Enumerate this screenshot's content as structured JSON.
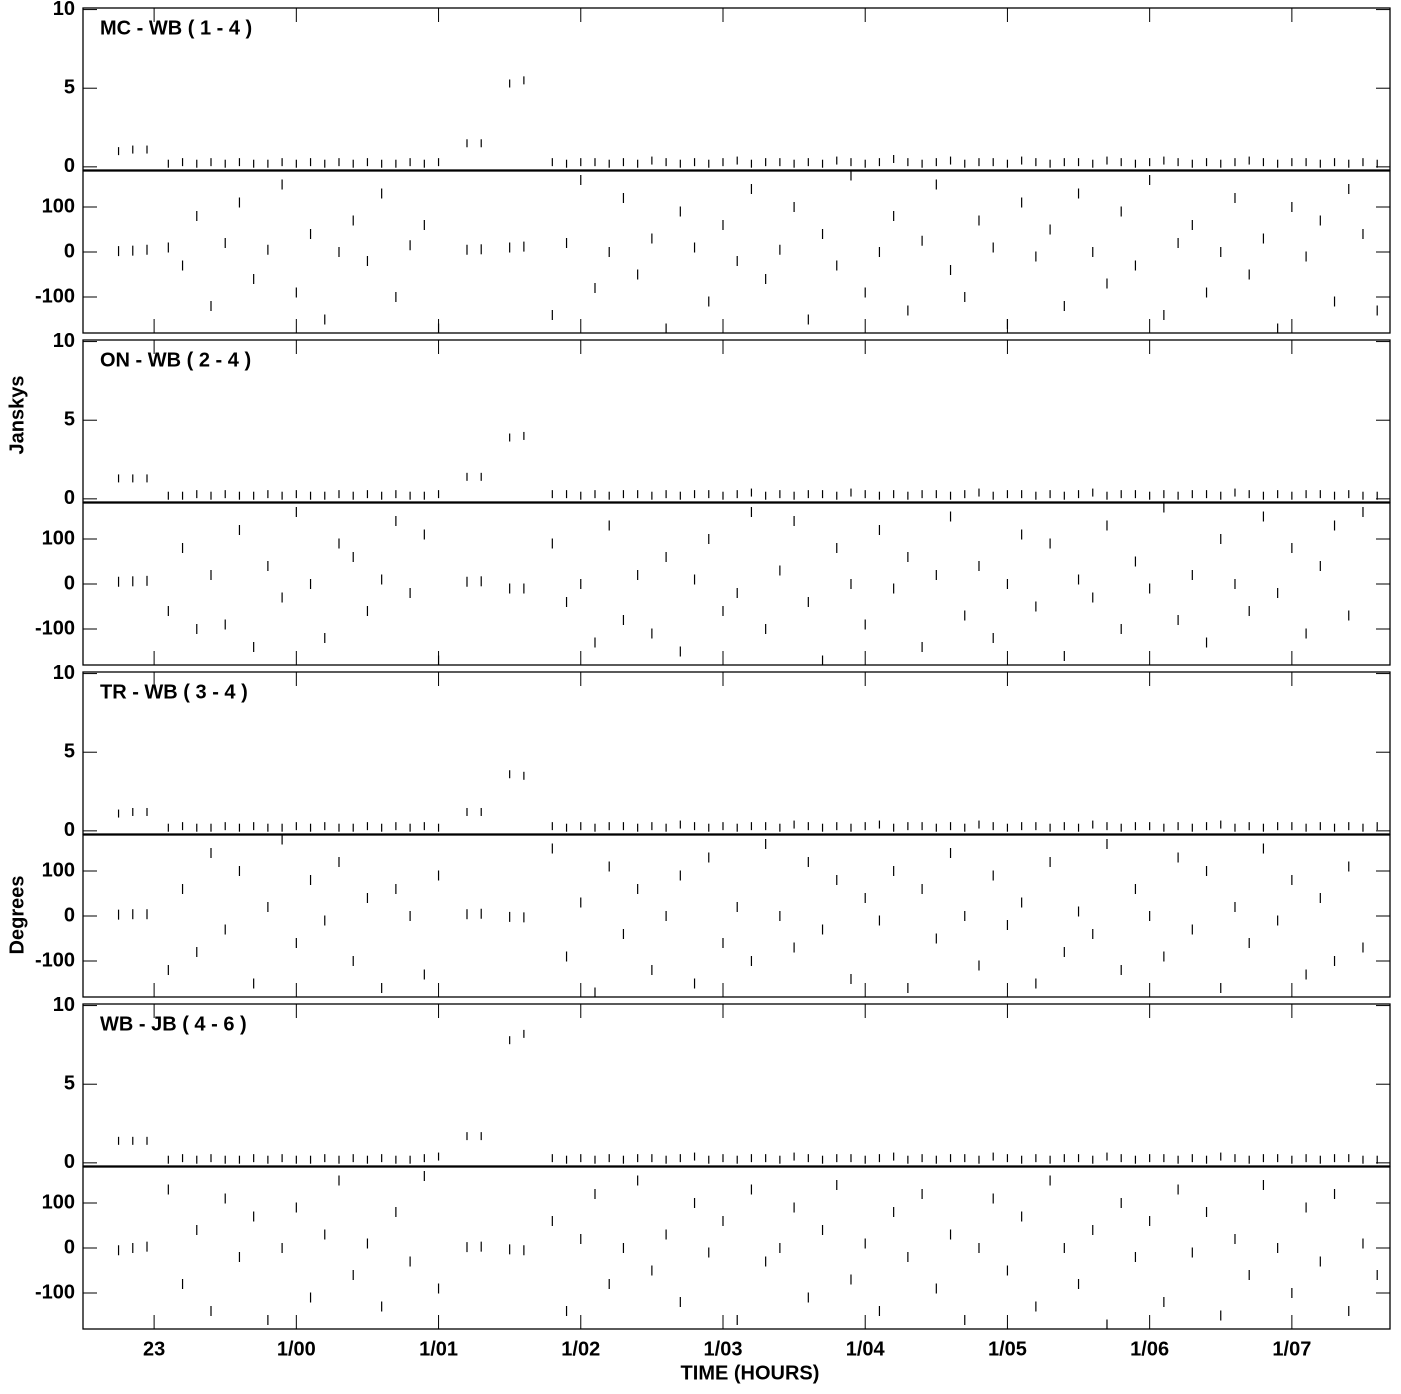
{
  "chart_data": {
    "type": "scatter",
    "x_label": "TIME (HOURS)",
    "amp_label": "Janskys",
    "phase_label": "Degrees",
    "color": "#000000",
    "xlim": [
      22.5,
      31.69
    ],
    "xticks": [
      {
        "value": 23,
        "label": "23"
      },
      {
        "value": 24,
        "label": "1/00"
      },
      {
        "value": 25,
        "label": "1/01"
      },
      {
        "value": 26,
        "label": "1/02"
      },
      {
        "value": 27,
        "label": "1/03"
      },
      {
        "value": 28,
        "label": "1/04"
      },
      {
        "value": 29,
        "label": "1/05"
      },
      {
        "value": 30,
        "label": "1/06"
      },
      {
        "value": 31,
        "label": "1/07"
      }
    ],
    "amp_ylim": [
      -0.2,
      10.1
    ],
    "amp_yticks": [
      0,
      5,
      10
    ],
    "phase_ylim": [
      -180,
      180
    ],
    "phase_yticks": [
      -100,
      0,
      100
    ],
    "x": [
      22.75,
      22.85,
      22.95,
      23.1,
      23.2,
      23.3,
      23.4,
      23.5,
      23.6,
      23.7,
      23.8,
      23.9,
      24.0,
      24.1,
      24.2,
      24.3,
      24.4,
      24.5,
      24.6,
      24.7,
      24.8,
      24.9,
      25.0,
      25.2,
      25.3,
      25.5,
      25.6,
      25.8,
      25.9,
      26.0,
      26.1,
      26.2,
      26.3,
      26.4,
      26.5,
      26.6,
      26.7,
      26.8,
      26.9,
      27.0,
      27.1,
      27.2,
      27.3,
      27.4,
      27.5,
      27.6,
      27.7,
      27.8,
      27.9,
      28.0,
      28.1,
      28.2,
      28.3,
      28.4,
      28.5,
      28.6,
      28.7,
      28.8,
      28.9,
      29.0,
      29.1,
      29.2,
      29.3,
      29.4,
      29.5,
      29.6,
      29.7,
      29.8,
      29.9,
      30.0,
      30.1,
      30.2,
      30.3,
      30.4,
      30.5,
      30.6,
      30.7,
      30.8,
      30.9,
      31.0,
      31.1,
      31.2,
      31.3,
      31.4,
      31.5,
      31.6
    ],
    "panels": [
      {
        "title": "MC - WB ( 1 - 4 )",
        "amplitude": [
          1.0,
          1.1,
          1.1,
          0.2,
          0.3,
          0.2,
          0.3,
          0.2,
          0.3,
          0.2,
          0.2,
          0.3,
          0.2,
          0.3,
          0.2,
          0.3,
          0.2,
          0.3,
          0.2,
          0.2,
          0.3,
          0.2,
          0.3,
          1.5,
          1.5,
          5.3,
          5.5,
          0.3,
          0.2,
          0.3,
          0.3,
          0.2,
          0.3,
          0.2,
          0.4,
          0.3,
          0.2,
          0.3,
          0.2,
          0.3,
          0.4,
          0.2,
          0.3,
          0.3,
          0.2,
          0.3,
          0.2,
          0.4,
          0.3,
          0.2,
          0.3,
          0.5,
          0.3,
          0.2,
          0.3,
          0.4,
          0.2,
          0.3,
          0.3,
          0.2,
          0.4,
          0.3,
          0.2,
          0.3,
          0.3,
          0.2,
          0.4,
          0.3,
          0.2,
          0.3,
          0.4,
          0.3,
          0.2,
          0.3,
          0.2,
          0.3,
          0.4,
          0.3,
          0.2,
          0.3,
          0.3,
          0.2,
          0.3,
          0.2,
          0.3,
          0.2
        ],
        "phase": [
          2,
          3,
          5,
          10,
          -30,
          80,
          -120,
          20,
          110,
          -60,
          5,
          150,
          -90,
          40,
          -150,
          0,
          70,
          -20,
          130,
          -100,
          15,
          60,
          -170,
          5,
          6,
          10,
          12,
          -140,
          20,
          160,
          -80,
          0,
          120,
          -50,
          30,
          -170,
          90,
          10,
          -110,
          60,
          -20,
          140,
          -60,
          5,
          100,
          -150,
          40,
          -30,
          170,
          -90,
          0,
          80,
          -130,
          25,
          150,
          -40,
          -100,
          70,
          10,
          -160,
          110,
          -10,
          50,
          -120,
          130,
          0,
          -70,
          90,
          -30,
          160,
          -140,
          20,
          60,
          -90,
          0,
          120,
          -50,
          30,
          -170,
          100,
          -10,
          70,
          -110,
          140,
          40,
          -130
        ]
      },
      {
        "title": "ON - WB ( 2 - 4 )",
        "amplitude": [
          1.3,
          1.3,
          1.3,
          0.2,
          0.2,
          0.3,
          0.2,
          0.3,
          0.2,
          0.2,
          0.3,
          0.2,
          0.3,
          0.2,
          0.2,
          0.3,
          0.2,
          0.3,
          0.2,
          0.3,
          0.2,
          0.2,
          0.3,
          1.4,
          1.4,
          3.9,
          4.0,
          0.3,
          0.3,
          0.2,
          0.3,
          0.2,
          0.3,
          0.3,
          0.2,
          0.3,
          0.2,
          0.3,
          0.3,
          0.2,
          0.3,
          0.4,
          0.2,
          0.3,
          0.2,
          0.3,
          0.3,
          0.2,
          0.4,
          0.3,
          0.2,
          0.3,
          0.2,
          0.3,
          0.3,
          0.2,
          0.3,
          0.4,
          0.2,
          0.3,
          0.3,
          0.2,
          0.3,
          0.2,
          0.3,
          0.4,
          0.2,
          0.3,
          0.3,
          0.2,
          0.3,
          0.2,
          0.3,
          0.3,
          0.2,
          0.4,
          0.3,
          0.2,
          0.3,
          0.2,
          0.3,
          0.3,
          0.2,
          0.3,
          0.2,
          0.2
        ],
        "phase": [
          5,
          6,
          7,
          -60,
          80,
          -100,
          20,
          -90,
          120,
          -140,
          40,
          -30,
          160,
          0,
          -120,
          90,
          60,
          -60,
          10,
          140,
          -20,
          110,
          -170,
          5,
          6,
          -10,
          -10,
          90,
          -40,
          0,
          -130,
          130,
          -80,
          20,
          -110,
          60,
          -150,
          10,
          100,
          -60,
          -20,
          160,
          -100,
          30,
          140,
          -40,
          -170,
          80,
          0,
          -90,
          120,
          -10,
          60,
          -140,
          20,
          150,
          -70,
          40,
          -120,
          0,
          110,
          -50,
          90,
          -160,
          10,
          -30,
          130,
          -100,
          50,
          -10,
          170,
          -80,
          20,
          -130,
          100,
          0,
          -60,
          150,
          -20,
          80,
          -110,
          40,
          130,
          -70,
          160
        ]
      },
      {
        "title": "TR - WB ( 3 - 4 )",
        "amplitude": [
          1.1,
          1.2,
          1.2,
          0.2,
          0.3,
          0.2,
          0.2,
          0.3,
          0.2,
          0.3,
          0.2,
          0.2,
          0.3,
          0.2,
          0.3,
          0.2,
          0.2,
          0.3,
          0.2,
          0.3,
          0.2,
          0.3,
          0.2,
          1.2,
          1.2,
          3.6,
          3.5,
          0.3,
          0.2,
          0.3,
          0.2,
          0.3,
          0.3,
          0.2,
          0.3,
          0.2,
          0.4,
          0.3,
          0.2,
          0.3,
          0.2,
          0.3,
          0.3,
          0.2,
          0.4,
          0.3,
          0.2,
          0.3,
          0.2,
          0.3,
          0.4,
          0.2,
          0.3,
          0.3,
          0.2,
          0.3,
          0.2,
          0.4,
          0.3,
          0.2,
          0.3,
          0.3,
          0.2,
          0.3,
          0.2,
          0.4,
          0.3,
          0.2,
          0.3,
          0.3,
          0.2,
          0.3,
          0.2,
          0.3,
          0.4,
          0.2,
          0.3,
          0.2,
          0.3,
          0.3,
          0.2,
          0.3,
          0.2,
          0.3,
          0.2,
          0.3
        ],
        "phase": [
          3,
          4,
          4,
          -120,
          60,
          -80,
          140,
          -30,
          100,
          -150,
          20,
          170,
          -60,
          80,
          -10,
          120,
          -100,
          40,
          -160,
          60,
          0,
          -130,
          90,
          4,
          5,
          -2,
          -3,
          150,
          -90,
          30,
          -170,
          110,
          -40,
          60,
          -120,
          0,
          90,
          -150,
          130,
          -60,
          20,
          -100,
          160,
          0,
          -70,
          120,
          -30,
          80,
          -140,
          40,
          -10,
          100,
          -160,
          60,
          -50,
          140,
          0,
          -110,
          90,
          -20,
          30,
          -150,
          120,
          -80,
          10,
          -40,
          160,
          -120,
          60,
          0,
          -90,
          130,
          -30,
          100,
          -160,
          20,
          -60,
          150,
          -10,
          80,
          -130,
          40,
          -100,
          110,
          -70
        ]
      },
      {
        "title": "WB - JB ( 4 - 6 )",
        "amplitude": [
          1.4,
          1.4,
          1.4,
          0.2,
          0.3,
          0.2,
          0.3,
          0.2,
          0.2,
          0.3,
          0.2,
          0.3,
          0.2,
          0.2,
          0.3,
          0.2,
          0.3,
          0.2,
          0.3,
          0.2,
          0.2,
          0.3,
          0.4,
          1.7,
          1.7,
          7.8,
          8.2,
          0.3,
          0.2,
          0.3,
          0.2,
          0.3,
          0.2,
          0.3,
          0.3,
          0.2,
          0.3,
          0.4,
          0.2,
          0.3,
          0.2,
          0.3,
          0.3,
          0.2,
          0.4,
          0.3,
          0.2,
          0.3,
          0.3,
          0.2,
          0.3,
          0.4,
          0.2,
          0.3,
          0.2,
          0.3,
          0.3,
          0.2,
          0.4,
          0.3,
          0.2,
          0.3,
          0.2,
          0.3,
          0.3,
          0.2,
          0.4,
          0.3,
          0.2,
          0.3,
          0.3,
          0.2,
          0.3,
          0.2,
          0.4,
          0.3,
          0.2,
          0.3,
          0.3,
          0.2,
          0.3,
          0.2,
          0.3,
          0.3,
          0.2,
          0.2
        ],
        "phase": [
          -5,
          0,
          3,
          130,
          -80,
          40,
          -140,
          110,
          -20,
          70,
          -160,
          0,
          90,
          -110,
          30,
          150,
          -60,
          10,
          -130,
          80,
          -30,
          160,
          -90,
          2,
          3,
          -3,
          -5,
          60,
          -140,
          20,
          120,
          -80,
          0,
          150,
          -50,
          30,
          -120,
          100,
          -10,
          60,
          -160,
          130,
          -30,
          0,
          90,
          -110,
          40,
          140,
          -70,
          10,
          -140,
          80,
          -20,
          120,
          -90,
          30,
          -160,
          0,
          110,
          -50,
          70,
          -130,
          150,
          0,
          -80,
          40,
          -170,
          100,
          -20,
          60,
          -120,
          130,
          -10,
          80,
          -150,
          20,
          -60,
          140,
          0,
          -100,
          90,
          -30,
          120,
          -140,
          10,
          -60
        ]
      }
    ]
  }
}
